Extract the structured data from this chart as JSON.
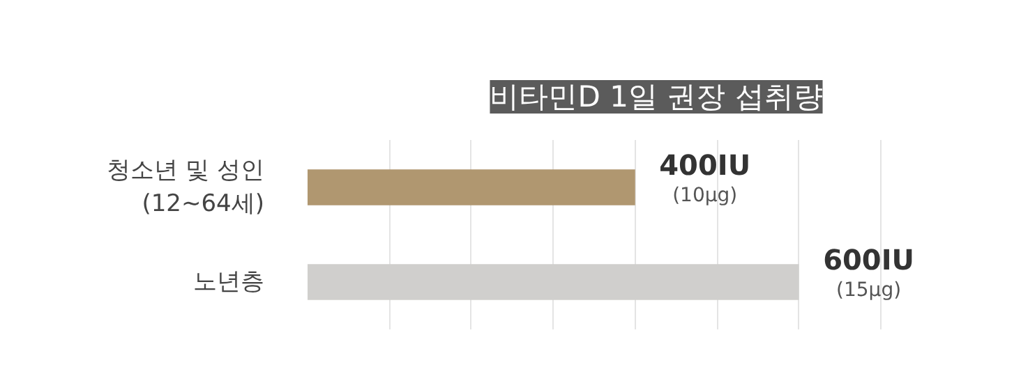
{
  "chart_data": {
    "type": "bar",
    "orientation": "horizontal",
    "title": "비타민D 1일 권장 섭취량",
    "categories": [
      "청소년 및 성인\n(12~64세)",
      "노년층"
    ],
    "values": [
      400,
      600
    ],
    "colors": [
      "#b09770",
      "#d0cfcd"
    ],
    "value_labels": [
      "400IU\n(10μg)",
      "600IU\n(15μg)"
    ],
    "xticks": [
      {
        "value": 100,
        "label": null
      },
      {
        "value": 200,
        "label": null
      },
      {
        "value": 300,
        "label": null
      },
      {
        "value": 400,
        "label": null
      },
      {
        "value": 500,
        "label": null
      },
      {
        "value": 600,
        "label": null
      },
      {
        "value": 700,
        "label": null
      }
    ],
    "grid": "x"
  }
}
